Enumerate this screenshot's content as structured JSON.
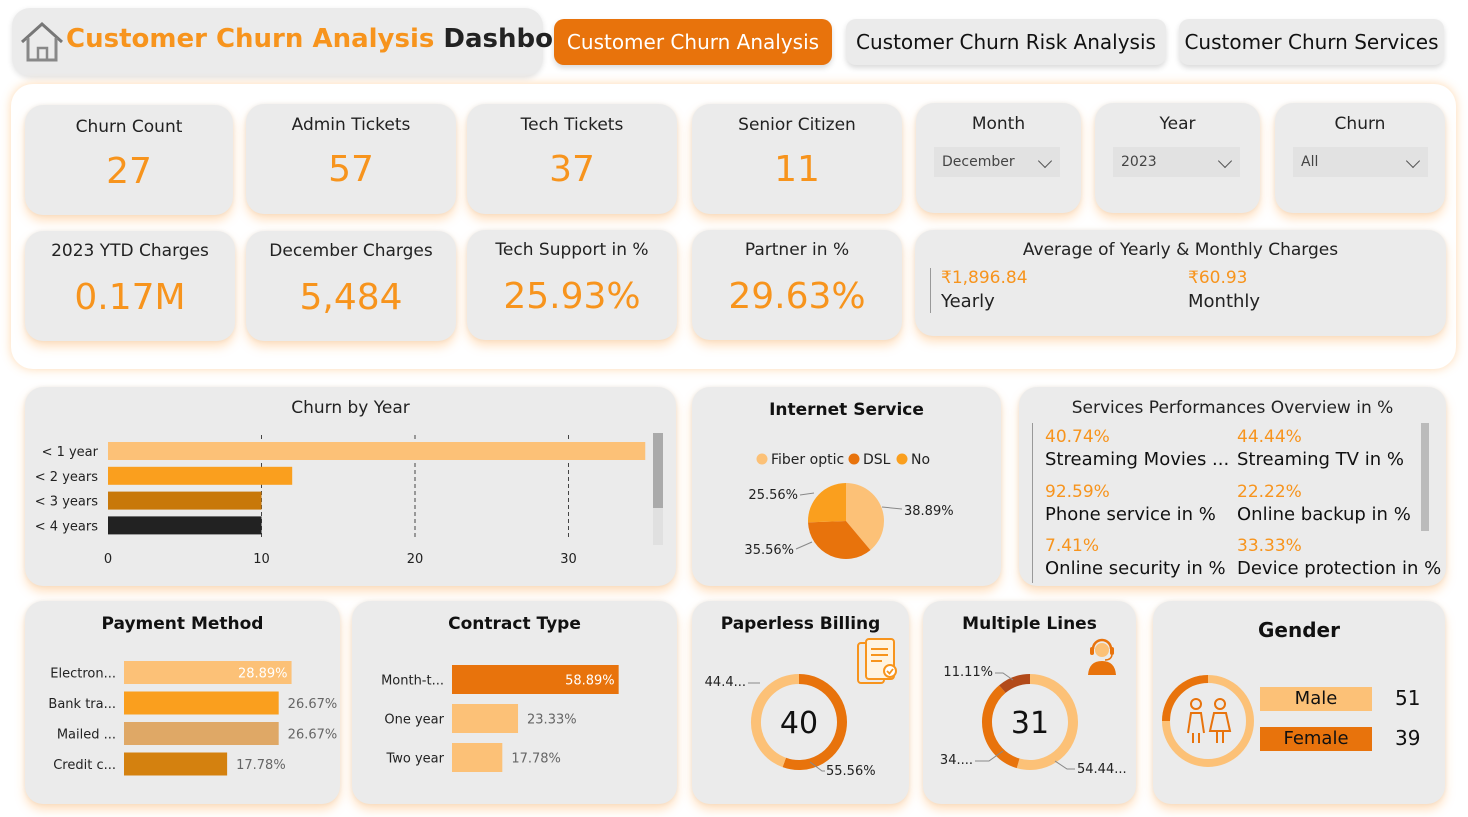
{
  "header": {
    "title_part1": "Customer Churn Analysis",
    "title_part2": "Dashboard"
  },
  "nav": {
    "tab1": "Customer Churn Analysis",
    "tab2": "Customer Churn Risk Analysis",
    "tab3": "Customer Churn Services"
  },
  "kpis": {
    "churn_count": {
      "label": "Churn Count",
      "value": "27"
    },
    "admin_tickets": {
      "label": "Admin Tickets",
      "value": "57"
    },
    "tech_tickets": {
      "label": "Tech Tickets",
      "value": "37"
    },
    "senior_citizen": {
      "label": "Senior Citizen",
      "value": "11"
    },
    "ytd_charges": {
      "label": "2023 YTD Charges",
      "value": "0.17M"
    },
    "december_charges": {
      "label": "December Charges",
      "value": "5,484"
    },
    "tech_support": {
      "label": "Tech Support in %",
      "value": "25.93%"
    },
    "partner": {
      "label": "Partner in %",
      "value": "29.63%"
    }
  },
  "slicers": {
    "month": {
      "label": "Month",
      "value": "December"
    },
    "year": {
      "label": "Year",
      "value": "2023"
    },
    "churn": {
      "label": "Churn",
      "value": "All"
    }
  },
  "avg_charges": {
    "title": "Average of Yearly & Monthly Charges",
    "yearly_value": "₹1,896.84",
    "yearly_label": "Yearly",
    "monthly_value": "₹60.93",
    "monthly_label": "Monthly"
  },
  "services": {
    "title": "Services Performances Overview in %",
    "items": [
      {
        "value": "40.74%",
        "label": "Streaming Movies ..."
      },
      {
        "value": "44.44%",
        "label": "Streaming TV in %"
      },
      {
        "value": "92.59%",
        "label": "Phone service in %"
      },
      {
        "value": "22.22%",
        "label": "Online backup in %"
      },
      {
        "value": "7.41%",
        "label": "Online security in %"
      },
      {
        "value": "33.33%",
        "label": "Device protection in %"
      }
    ]
  },
  "chart_data": [
    {
      "id": "churn_by_year",
      "type": "bar",
      "orientation": "horizontal",
      "title": "Churn by Year",
      "categories": [
        "< 1 year",
        "< 2 years",
        "< 3 years",
        "< 4 years"
      ],
      "values": [
        35,
        12,
        10,
        10
      ],
      "colors": [
        "#fcc177",
        "#fa9f1e",
        "#c8780a",
        "#222222"
      ],
      "xticks": [
        "0",
        "10",
        "20",
        "30"
      ],
      "xlim": [
        0,
        35
      ],
      "grid": true
    },
    {
      "id": "internet_service",
      "type": "pie",
      "title": "Internet Service",
      "legend": [
        "Fiber optic",
        "DSL",
        "No"
      ],
      "values": [
        38.89,
        35.56,
        25.56
      ],
      "labels": [
        "38.89%",
        "35.56%",
        "25.56%"
      ],
      "colors": [
        "#fcc177",
        "#e8730c",
        "#fa9f1e"
      ],
      "legend_position": "top"
    },
    {
      "id": "payment_method",
      "type": "bar",
      "orientation": "horizontal",
      "title": "Payment Method",
      "categories": [
        "Electron...",
        "Bank tra...",
        "Mailed ...",
        "Credit c..."
      ],
      "values": [
        28.89,
        26.67,
        26.67,
        17.78
      ],
      "labels": [
        "28.89%",
        "26.67%",
        "26.67%",
        "17.78%"
      ],
      "colors": [
        "#fcc177",
        "#fa9f1e",
        "#dfa866",
        "#d4810f"
      ],
      "xlim": [
        0,
        32
      ]
    },
    {
      "id": "contract_type",
      "type": "bar",
      "orientation": "horizontal",
      "title": "Contract Type",
      "categories": [
        "Month-t...",
        "One year",
        "Two year"
      ],
      "values": [
        58.89,
        23.33,
        17.78
      ],
      "labels": [
        "58.89%",
        "23.33%",
        "17.78%"
      ],
      "colors": [
        "#e8730c",
        "#fcc177",
        "#fcc177"
      ],
      "xlim": [
        0,
        67
      ]
    },
    {
      "id": "paperless_billing",
      "type": "donut",
      "title": "Paperless Billing",
      "center": "40",
      "values": [
        55.56,
        44.44
      ],
      "labels": [
        "55.56%",
        "44.4..."
      ],
      "colors": [
        "#e8730c",
        "#fcc177"
      ]
    },
    {
      "id": "multiple_lines",
      "type": "donut",
      "title": "Multiple Lines",
      "center": "31",
      "values": [
        54.44,
        34.44,
        11.11
      ],
      "labels": [
        "54.44...",
        "34....",
        "11.11%"
      ],
      "colors": [
        "#fcc177",
        "#e8730c",
        "#b24a1a"
      ]
    },
    {
      "id": "gender",
      "type": "bar",
      "title": "Gender",
      "categories": [
        "Male",
        "Female"
      ],
      "values": [
        51,
        39
      ],
      "colors": [
        "#fcc177",
        "#e8730c"
      ]
    }
  ]
}
